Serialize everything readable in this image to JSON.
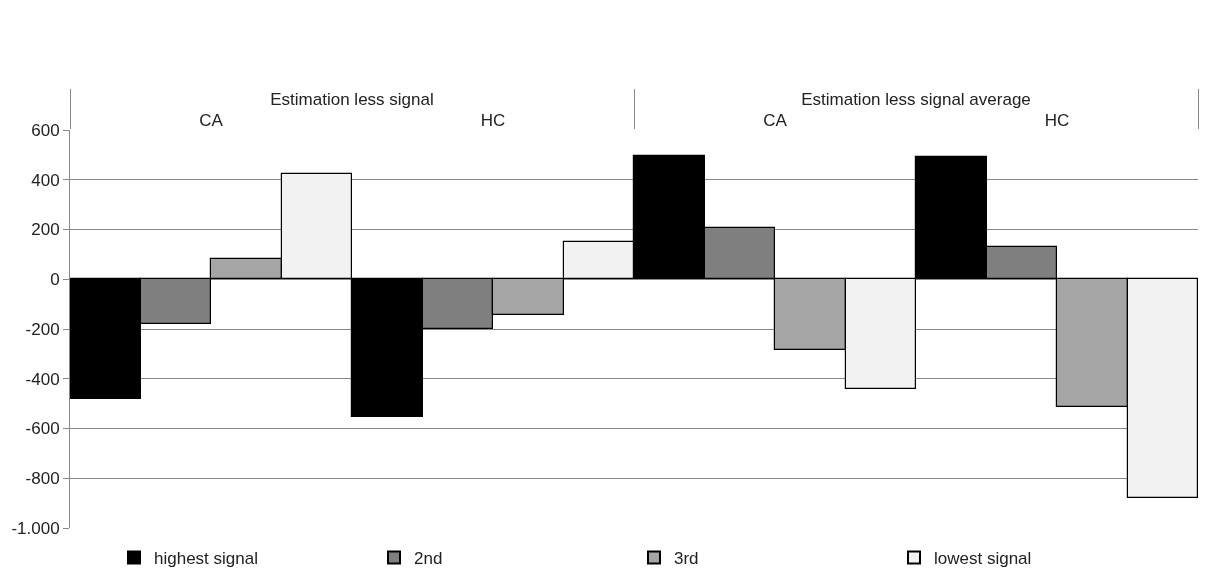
{
  "chart_data": {
    "type": "bar",
    "categories": [
      "CA",
      "HC",
      "CA",
      "HC"
    ],
    "annotations": [
      "Estimation less signal",
      "Estimation less signal average"
    ],
    "series": [
      {
        "name": "highest signal",
        "color": "#000000",
        "values": [
          -480,
          -555,
          495,
          490
        ]
      },
      {
        "name": "2nd",
        "color": "#7f7f7f",
        "values": [
          -180,
          -200,
          205,
          130
        ]
      },
      {
        "name": "3rd",
        "color": "#a5a5a5",
        "values": [
          80,
          -145,
          -285,
          -515
        ]
      },
      {
        "name": "lowest signal",
        "color": "#f2f2f2",
        "values": [
          425,
          150,
          -440,
          -880
        ]
      }
    ],
    "ylim": [
      -1000,
      600
    ],
    "yticks": [
      {
        "value": -1000,
        "label": "-1.000"
      },
      -800,
      -600,
      -400,
      -200,
      0,
      200,
      400,
      600
    ],
    "grid": "y",
    "legend": "bottom"
  }
}
